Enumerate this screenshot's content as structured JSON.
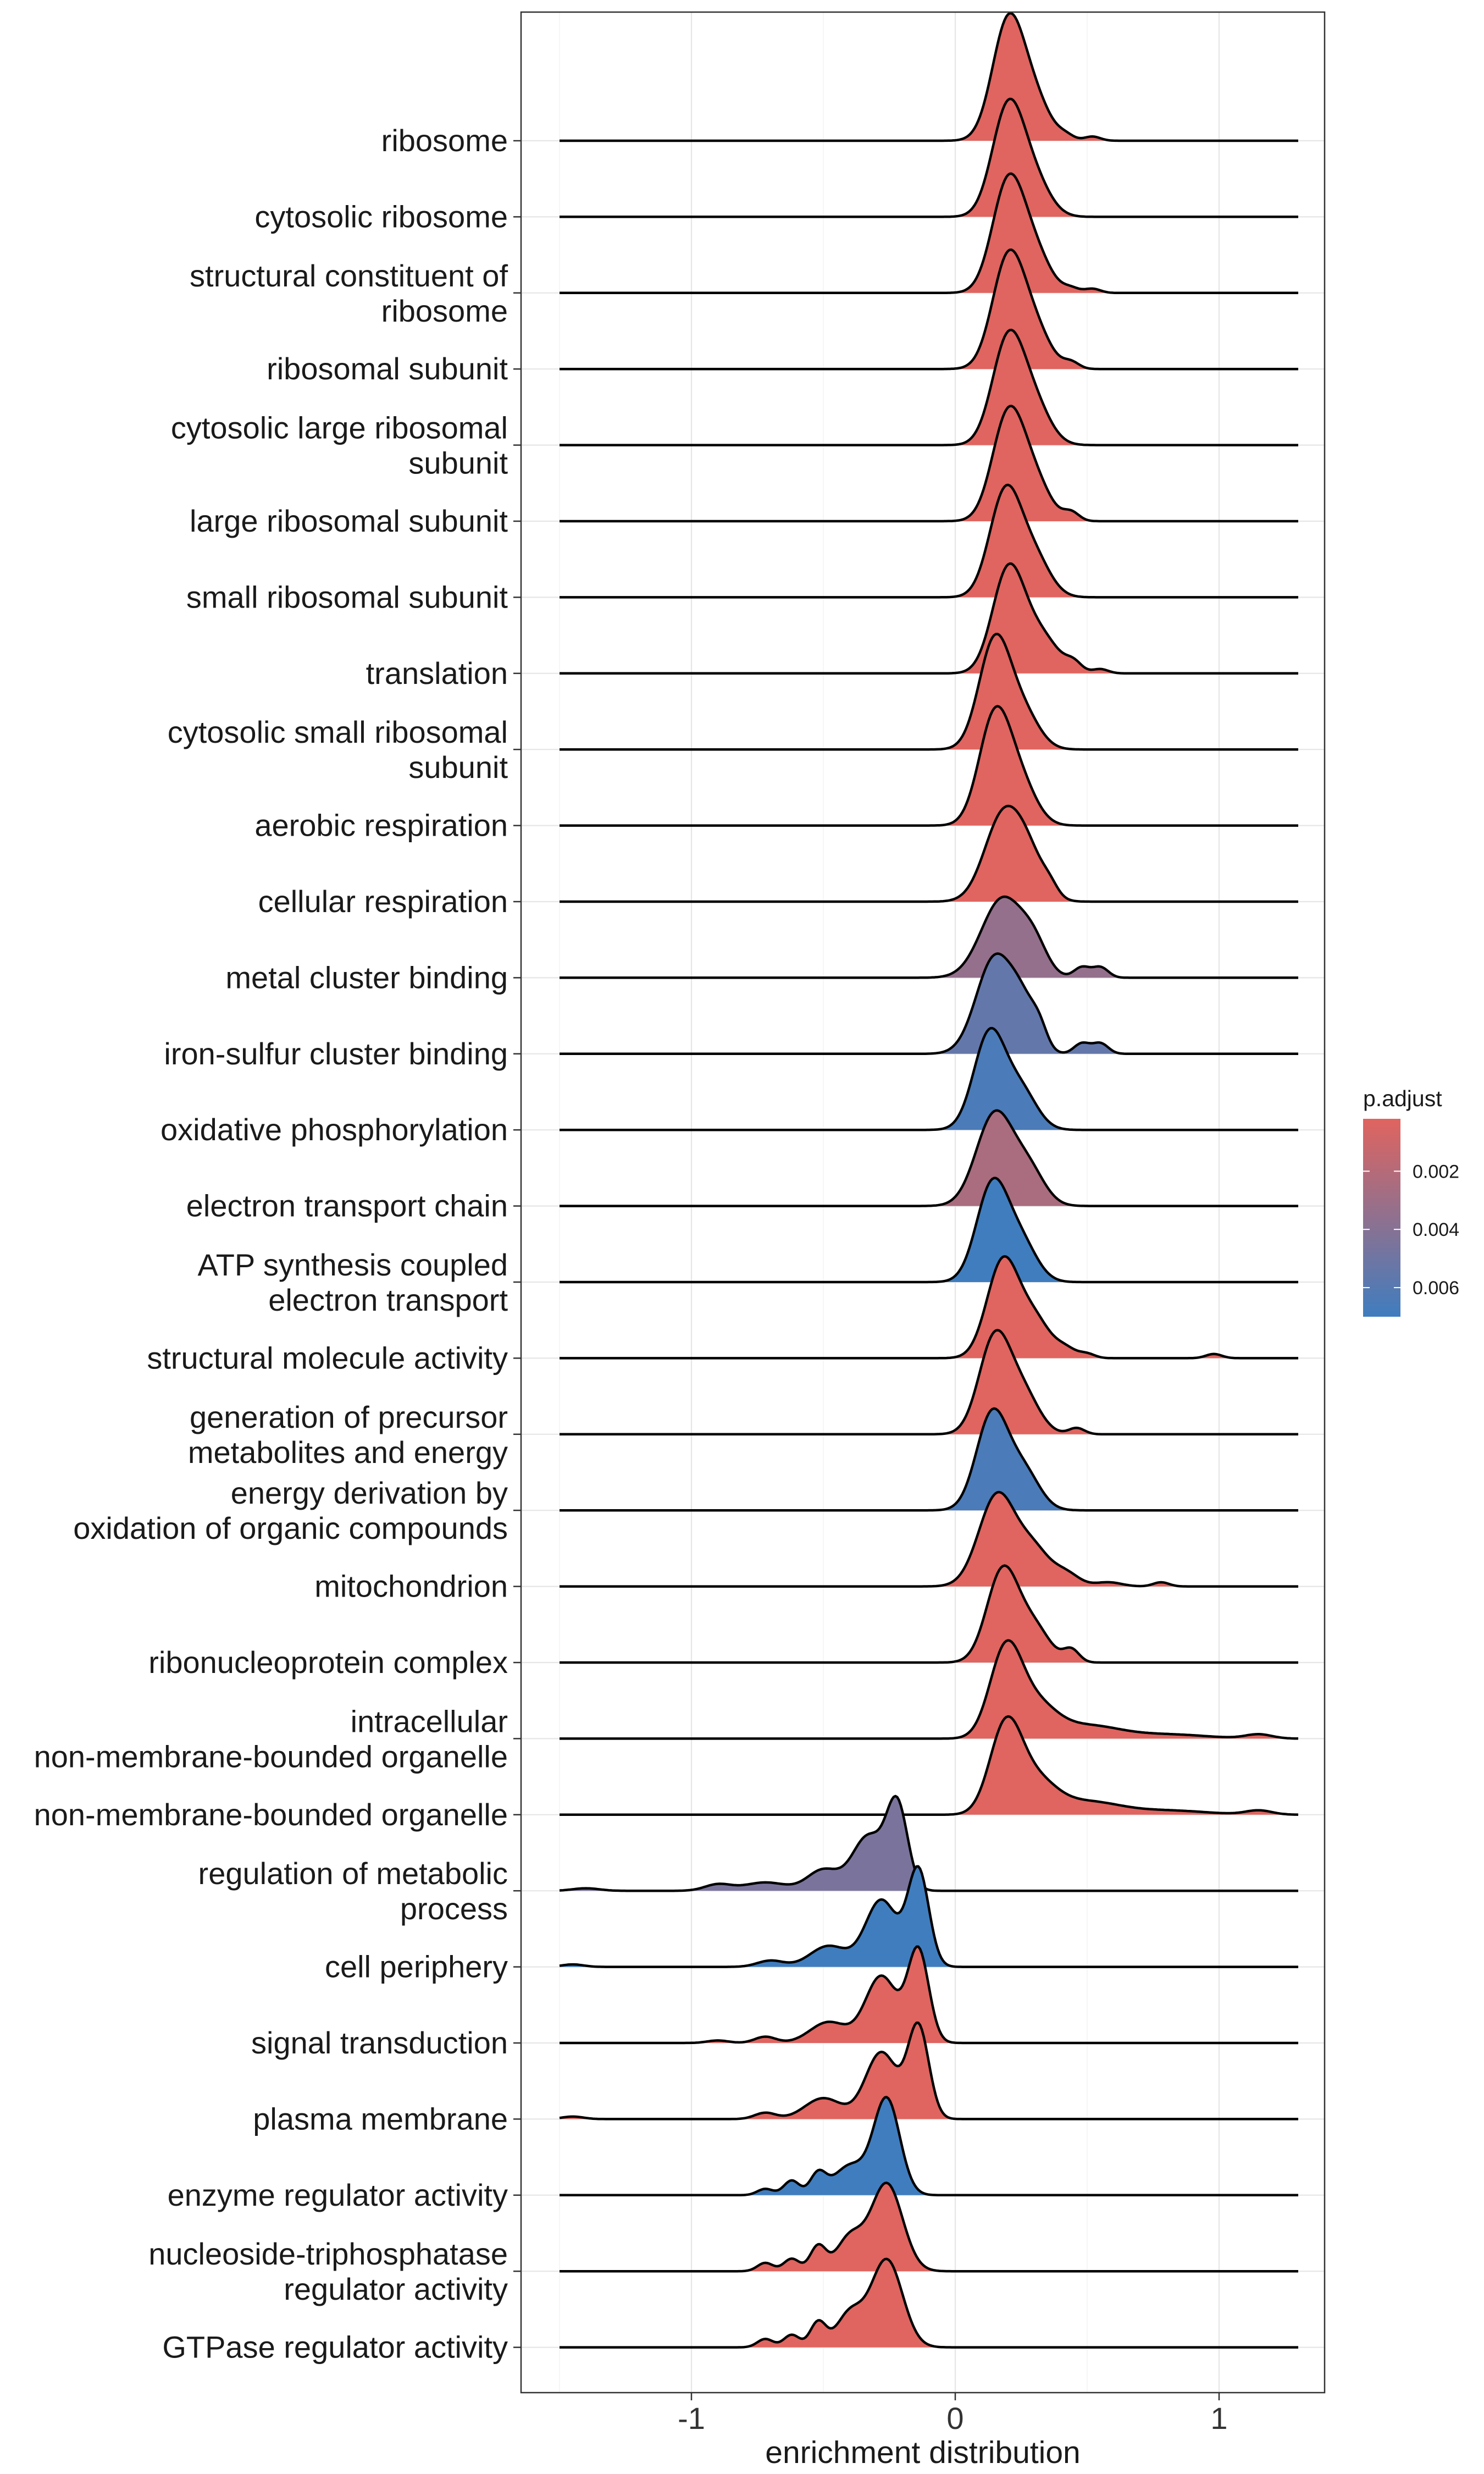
{
  "chart_data": {
    "type": "ridgeline",
    "title": "",
    "xlabel": "enrichment distribution",
    "ylabel": "",
    "xlim": [
      -1.65,
      1.38
    ],
    "x_ticks": [
      -1,
      0,
      1
    ],
    "x_tick_labels": [
      "-1",
      "0",
      "1"
    ],
    "grid": true,
    "legend": {
      "title": "p.adjust",
      "placement": "right",
      "gradient": {
        "low_color": "#e0645f",
        "high_color": "#3f7dbf",
        "min": 0.0002,
        "max": 0.007
      },
      "ticks": [
        0.002,
        0.004,
        0.006
      ],
      "tick_labels": [
        "0.002",
        "0.004",
        "0.006"
      ]
    },
    "colors": {
      "low_padj": "#e0645f",
      "high_padj": "#3f7dbf",
      "panel_border": "#333333",
      "grid": "#e6e6e6"
    },
    "series": [
      {
        "name": "ribosome",
        "label_lines": [
          "ribosome"
        ],
        "p_adjust": 0.0002,
        "peaks": [
          [
            0.2,
            0.06,
            2.8
          ],
          [
            0.3,
            0.06,
            0.9
          ],
          [
            0.42,
            0.03,
            0.1
          ],
          [
            0.52,
            0.03,
            0.1
          ]
        ]
      },
      {
        "name": "cytosolic ribosome",
        "label_lines": [
          "cytosolic ribosome"
        ],
        "p_adjust": 0.0002,
        "peaks": [
          [
            0.2,
            0.06,
            2.6
          ],
          [
            0.3,
            0.06,
            0.8
          ]
        ]
      },
      {
        "name": "structural constituent of ribosome",
        "label_lines": [
          "structural constituent of",
          "ribosome"
        ],
        "p_adjust": 0.0002,
        "peaks": [
          [
            0.2,
            0.06,
            2.6
          ],
          [
            0.3,
            0.06,
            0.9
          ],
          [
            0.44,
            0.03,
            0.1
          ],
          [
            0.52,
            0.03,
            0.1
          ]
        ]
      },
      {
        "name": "ribosomal subunit",
        "label_lines": [
          "ribosomal subunit"
        ],
        "p_adjust": 0.0002,
        "peaks": [
          [
            0.2,
            0.06,
            2.6
          ],
          [
            0.3,
            0.06,
            0.9
          ],
          [
            0.44,
            0.03,
            0.15
          ]
        ]
      },
      {
        "name": "cytosolic large ribosomal subunit",
        "label_lines": [
          "cytosolic large ribosomal",
          "subunit"
        ],
        "p_adjust": 0.0002,
        "peaks": [
          [
            0.2,
            0.06,
            2.5
          ],
          [
            0.3,
            0.06,
            0.9
          ]
        ]
      },
      {
        "name": "large ribosomal subunit",
        "label_lines": [
          "large ribosomal subunit"
        ],
        "p_adjust": 0.0002,
        "peaks": [
          [
            0.2,
            0.06,
            2.5
          ],
          [
            0.3,
            0.06,
            0.9
          ],
          [
            0.44,
            0.03,
            0.2
          ]
        ]
      },
      {
        "name": "small ribosomal subunit",
        "label_lines": [
          "small ribosomal subunit"
        ],
        "p_adjust": 0.0002,
        "peaks": [
          [
            0.19,
            0.06,
            2.5
          ],
          [
            0.3,
            0.06,
            0.9
          ]
        ]
      },
      {
        "name": "translation",
        "label_lines": [
          "translation"
        ],
        "p_adjust": 0.0002,
        "peaks": [
          [
            0.2,
            0.06,
            2.4
          ],
          [
            0.32,
            0.07,
            0.9
          ],
          [
            0.45,
            0.03,
            0.2
          ],
          [
            0.55,
            0.03,
            0.1
          ]
        ]
      },
      {
        "name": "cytosolic small ribosomal subunit",
        "label_lines": [
          "cytosolic small ribosomal",
          "subunit"
        ],
        "p_adjust": 0.0002,
        "peaks": [
          [
            0.15,
            0.06,
            2.6
          ],
          [
            0.26,
            0.06,
            0.8
          ]
        ]
      },
      {
        "name": "aerobic respiration",
        "label_lines": [
          "aerobic respiration"
        ],
        "p_adjust": 0.0002,
        "peaks": [
          [
            0.15,
            0.06,
            2.6
          ],
          [
            0.25,
            0.06,
            0.9
          ]
        ]
      },
      {
        "name": "cellular respiration",
        "label_lines": [
          "cellular respiration"
        ],
        "p_adjust": 0.0002,
        "peaks": [
          [
            0.18,
            0.07,
            2.0
          ],
          [
            0.28,
            0.06,
            0.9
          ],
          [
            0.36,
            0.03,
            0.2
          ]
        ]
      },
      {
        "name": "metal cluster binding",
        "label_lines": [
          "metal cluster binding"
        ],
        "p_adjust": 0.0034,
        "peaks": [
          [
            0.18,
            0.08,
            1.9
          ],
          [
            0.3,
            0.05,
            0.6
          ],
          [
            0.48,
            0.03,
            0.25
          ],
          [
            0.55,
            0.03,
            0.25
          ]
        ]
      },
      {
        "name": "iron-sulfur cluster binding",
        "label_lines": [
          "iron-sulfur cluster binding"
        ],
        "p_adjust": 0.0055,
        "peaks": [
          [
            0.15,
            0.07,
            2.3
          ],
          [
            0.26,
            0.05,
            0.9
          ],
          [
            0.32,
            0.03,
            0.4
          ],
          [
            0.48,
            0.03,
            0.25
          ],
          [
            0.55,
            0.03,
            0.25
          ]
        ]
      },
      {
        "name": "oxidative phosphorylation",
        "label_lines": [
          "oxidative phosphorylation"
        ],
        "p_adjust": 0.0065,
        "peaks": [
          [
            0.13,
            0.06,
            2.3
          ],
          [
            0.25,
            0.06,
            0.9
          ]
        ]
      },
      {
        "name": "electron transport chain",
        "label_lines": [
          "electron transport chain"
        ],
        "p_adjust": 0.0025,
        "peaks": [
          [
            0.15,
            0.07,
            2.2
          ],
          [
            0.28,
            0.06,
            0.8
          ]
        ]
      },
      {
        "name": "ATP synthesis coupled electron transport",
        "label_lines": [
          "ATP synthesis coupled",
          "electron transport"
        ],
        "p_adjust": 0.007,
        "peaks": [
          [
            0.14,
            0.06,
            2.3
          ],
          [
            0.25,
            0.06,
            0.9
          ]
        ]
      },
      {
        "name": "structural molecule activity",
        "label_lines": [
          "structural molecule activity"
        ],
        "p_adjust": 0.0002,
        "peaks": [
          [
            0.18,
            0.06,
            2.3
          ],
          [
            0.3,
            0.06,
            0.9
          ],
          [
            0.42,
            0.04,
            0.2
          ],
          [
            0.5,
            0.03,
            0.1
          ],
          [
            0.98,
            0.03,
            0.1
          ]
        ]
      },
      {
        "name": "generation of precursor metabolites and energy",
        "label_lines": [
          "generation of precursor",
          "metabolites and energy"
        ],
        "p_adjust": 0.0002,
        "peaks": [
          [
            0.15,
            0.06,
            2.3
          ],
          [
            0.26,
            0.06,
            0.9
          ],
          [
            0.46,
            0.03,
            0.15
          ]
        ]
      },
      {
        "name": "energy derivation by oxidation of organic compounds",
        "label_lines": [
          "energy derivation by",
          "oxidation of organic compounds"
        ],
        "p_adjust": 0.0065,
        "peaks": [
          [
            0.14,
            0.06,
            2.3
          ],
          [
            0.26,
            0.06,
            0.9
          ]
        ]
      },
      {
        "name": "mitochondrion",
        "label_lines": [
          "mitochondrion"
        ],
        "p_adjust": 0.0002,
        "peaks": [
          [
            0.16,
            0.07,
            2.2
          ],
          [
            0.3,
            0.06,
            0.8
          ],
          [
            0.42,
            0.05,
            0.3
          ],
          [
            0.58,
            0.05,
            0.1
          ],
          [
            0.78,
            0.03,
            0.1
          ]
        ]
      },
      {
        "name": "ribonucleoprotein complex",
        "label_lines": [
          "ribonucleoprotein complex"
        ],
        "p_adjust": 0.0002,
        "peaks": [
          [
            0.18,
            0.06,
            2.2
          ],
          [
            0.3,
            0.06,
            0.8
          ],
          [
            0.44,
            0.03,
            0.3
          ]
        ]
      },
      {
        "name": "intracellular non-membrane-bounded organelle",
        "label_lines": [
          "intracellular",
          "non-membrane-bounded organelle"
        ],
        "p_adjust": 0.0002,
        "peaks": [
          [
            0.19,
            0.06,
            2.0
          ],
          [
            0.3,
            0.08,
            0.8
          ],
          [
            0.5,
            0.12,
            0.3
          ],
          [
            0.8,
            0.15,
            0.1
          ],
          [
            1.15,
            0.05,
            0.1
          ]
        ]
      },
      {
        "name": "non-membrane-bounded organelle",
        "label_lines": [
          "non-membrane-bounded organelle"
        ],
        "p_adjust": 0.0002,
        "peaks": [
          [
            0.19,
            0.06,
            2.0
          ],
          [
            0.3,
            0.08,
            0.8
          ],
          [
            0.5,
            0.12,
            0.3
          ],
          [
            0.8,
            0.15,
            0.1
          ],
          [
            1.15,
            0.05,
            0.1
          ]
        ]
      },
      {
        "name": "regulation of metabolic process",
        "label_lines": [
          "regulation of metabolic",
          "process"
        ],
        "p_adjust": 0.0045,
        "peaks": [
          [
            -0.22,
            0.04,
            2.0
          ],
          [
            -0.33,
            0.06,
            1.3
          ],
          [
            -0.5,
            0.06,
            0.5
          ],
          [
            -0.72,
            0.08,
            0.2
          ],
          [
            -0.9,
            0.05,
            0.15
          ],
          [
            -1.4,
            0.05,
            0.06
          ]
        ]
      },
      {
        "name": "cell periphery",
        "label_lines": [
          "cell periphery"
        ],
        "p_adjust": 0.007,
        "peaks": [
          [
            -0.14,
            0.04,
            2.3
          ],
          [
            -0.28,
            0.06,
            1.6
          ],
          [
            -0.48,
            0.07,
            0.5
          ],
          [
            -0.7,
            0.05,
            0.15
          ],
          [
            -1.45,
            0.04,
            0.06
          ]
        ]
      },
      {
        "name": "signal transduction",
        "label_lines": [
          "signal transduction"
        ],
        "p_adjust": 0.0002,
        "peaks": [
          [
            -0.14,
            0.04,
            2.2
          ],
          [
            -0.28,
            0.06,
            1.6
          ],
          [
            -0.48,
            0.07,
            0.5
          ],
          [
            -0.72,
            0.04,
            0.15
          ],
          [
            -0.9,
            0.04,
            0.06
          ]
        ]
      },
      {
        "name": "plasma membrane",
        "label_lines": [
          "plasma membrane"
        ],
        "p_adjust": 0.0002,
        "peaks": [
          [
            -0.14,
            0.04,
            2.2
          ],
          [
            -0.28,
            0.06,
            1.6
          ],
          [
            -0.5,
            0.07,
            0.5
          ],
          [
            -0.72,
            0.04,
            0.15
          ],
          [
            -1.45,
            0.04,
            0.06
          ]
        ]
      },
      {
        "name": "enzyme regulator activity",
        "label_lines": [
          "enzyme regulator activity"
        ],
        "p_adjust": 0.007,
        "peaks": [
          [
            -0.26,
            0.05,
            2.3
          ],
          [
            -0.4,
            0.06,
            0.7
          ],
          [
            -0.52,
            0.03,
            0.5
          ],
          [
            -0.62,
            0.03,
            0.35
          ],
          [
            -0.72,
            0.03,
            0.15
          ]
        ]
      },
      {
        "name": "nucleoside-triphosphatase regulator activity",
        "label_lines": [
          "nucleoside-triphosphatase",
          "regulator activity"
        ],
        "p_adjust": 0.0002,
        "peaks": [
          [
            -0.26,
            0.06,
            2.1
          ],
          [
            -0.4,
            0.05,
            0.8
          ],
          [
            -0.52,
            0.03,
            0.6
          ],
          [
            -0.62,
            0.03,
            0.3
          ],
          [
            -0.72,
            0.03,
            0.2
          ]
        ]
      },
      {
        "name": "GTPase regulator activity",
        "label_lines": [
          "GTPase regulator activity"
        ],
        "p_adjust": 0.0002,
        "peaks": [
          [
            -0.26,
            0.06,
            2.1
          ],
          [
            -0.4,
            0.05,
            0.8
          ],
          [
            -0.52,
            0.03,
            0.6
          ],
          [
            -0.62,
            0.03,
            0.3
          ],
          [
            -0.72,
            0.03,
            0.2
          ]
        ]
      }
    ]
  }
}
